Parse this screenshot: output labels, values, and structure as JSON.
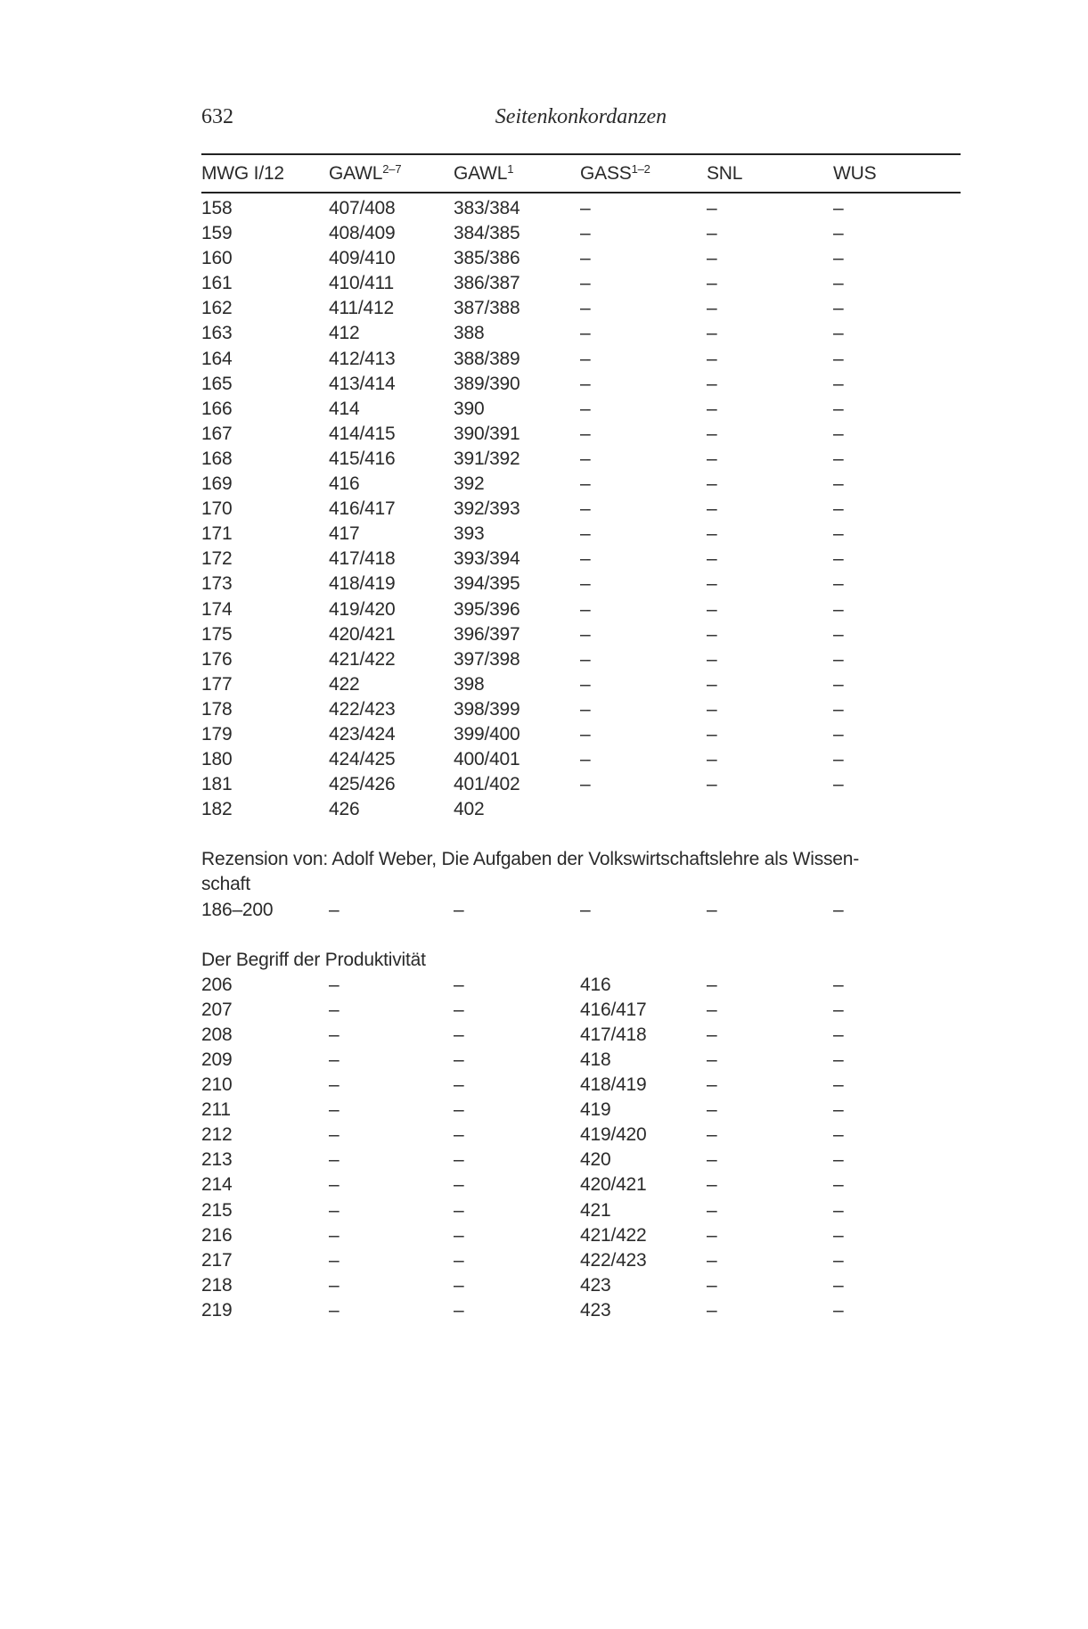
{
  "running_head": {
    "page_number": "632",
    "title": "Seitenkonkordanzen"
  },
  "columns": [
    {
      "label": "MWG I/12",
      "sup": ""
    },
    {
      "label": "GAWL",
      "sup": "2–7"
    },
    {
      "label": "GAWL",
      "sup": "1"
    },
    {
      "label": "GASS",
      "sup": "1–2"
    },
    {
      "label": "SNL",
      "sup": ""
    },
    {
      "label": "WUS",
      "sup": ""
    }
  ],
  "sections": [
    {
      "heading": "",
      "rows": [
        [
          "158",
          "407/408",
          "383/384",
          "–",
          "–",
          "–"
        ],
        [
          "159",
          "408/409",
          "384/385",
          "–",
          "–",
          "–"
        ],
        [
          "160",
          "409/410",
          "385/386",
          "–",
          "–",
          "–"
        ],
        [
          "161",
          "410/411",
          "386/387",
          "–",
          "–",
          "–"
        ],
        [
          "162",
          "411/412",
          "387/388",
          "–",
          "–",
          "–"
        ],
        [
          "163",
          "412",
          "388",
          "–",
          "–",
          "–"
        ],
        [
          "164",
          "412/413",
          "388/389",
          "–",
          "–",
          "–"
        ],
        [
          "165",
          "413/414",
          "389/390",
          "–",
          "–",
          "–"
        ],
        [
          "166",
          "414",
          "390",
          "–",
          "–",
          "–"
        ],
        [
          "167",
          "414/415",
          "390/391",
          "–",
          "–",
          "–"
        ],
        [
          "168",
          "415/416",
          "391/392",
          "–",
          "–",
          "–"
        ],
        [
          "169",
          "416",
          "392",
          "–",
          "–",
          "–"
        ],
        [
          "170",
          "416/417",
          "392/393",
          "–",
          "–",
          "–"
        ],
        [
          "171",
          "417",
          "393",
          "–",
          "–",
          "–"
        ],
        [
          "172",
          "417/418",
          "393/394",
          "–",
          "–",
          "–"
        ],
        [
          "173",
          "418/419",
          "394/395",
          "–",
          "–",
          "–"
        ],
        [
          "174",
          "419/420",
          "395/396",
          "–",
          "–",
          "–"
        ],
        [
          "175",
          "420/421",
          "396/397",
          "–",
          "–",
          "–"
        ],
        [
          "176",
          "421/422",
          "397/398",
          "–",
          "–",
          "–"
        ],
        [
          "177",
          "422",
          "398",
          "–",
          "–",
          "–"
        ],
        [
          "178",
          "422/423",
          "398/399",
          "–",
          "–",
          "–"
        ],
        [
          "179",
          "423/424",
          "399/400",
          "–",
          "–",
          "–"
        ],
        [
          "180",
          "424/425",
          "400/401",
          "–",
          "–",
          "–"
        ],
        [
          "181",
          "425/426",
          "401/402",
          "–",
          "–",
          "–"
        ],
        [
          "182",
          "426",
          "402",
          "",
          "",
          ""
        ]
      ]
    },
    {
      "heading": "Rezension von: Adolf Weber, Die Aufgaben der Volkswirtschaftslehre als Wissen-\nschaft",
      "rows": [
        [
          "186–200",
          "–",
          "–",
          "–",
          "–",
          "–"
        ]
      ]
    },
    {
      "heading": "Der Begriff der Produktivität",
      "rows": [
        [
          "206",
          "–",
          "–",
          "416",
          "–",
          "–"
        ],
        [
          "207",
          "–",
          "–",
          "416/417",
          "–",
          "–"
        ],
        [
          "208",
          "–",
          "–",
          "417/418",
          "–",
          "–"
        ],
        [
          "209",
          "–",
          "–",
          "418",
          "–",
          "–"
        ],
        [
          "210",
          "–",
          "–",
          "418/419",
          "–",
          "–"
        ],
        [
          "211",
          "–",
          "–",
          "419",
          "–",
          "–"
        ],
        [
          "212",
          "–",
          "–",
          "419/420",
          "–",
          "–"
        ],
        [
          "213",
          "–",
          "–",
          "420",
          "–",
          "–"
        ],
        [
          "214",
          "–",
          "–",
          "420/421",
          "–",
          "–"
        ],
        [
          "215",
          "–",
          "–",
          "421",
          "–",
          "–"
        ],
        [
          "216",
          "–",
          "–",
          "421/422",
          "–",
          "–"
        ],
        [
          "217",
          "–",
          "–",
          "422/423",
          "–",
          "–"
        ],
        [
          "218",
          "–",
          "–",
          "423",
          "–",
          "–"
        ],
        [
          "219",
          "–",
          "–",
          "423",
          "–",
          "–"
        ]
      ]
    }
  ]
}
